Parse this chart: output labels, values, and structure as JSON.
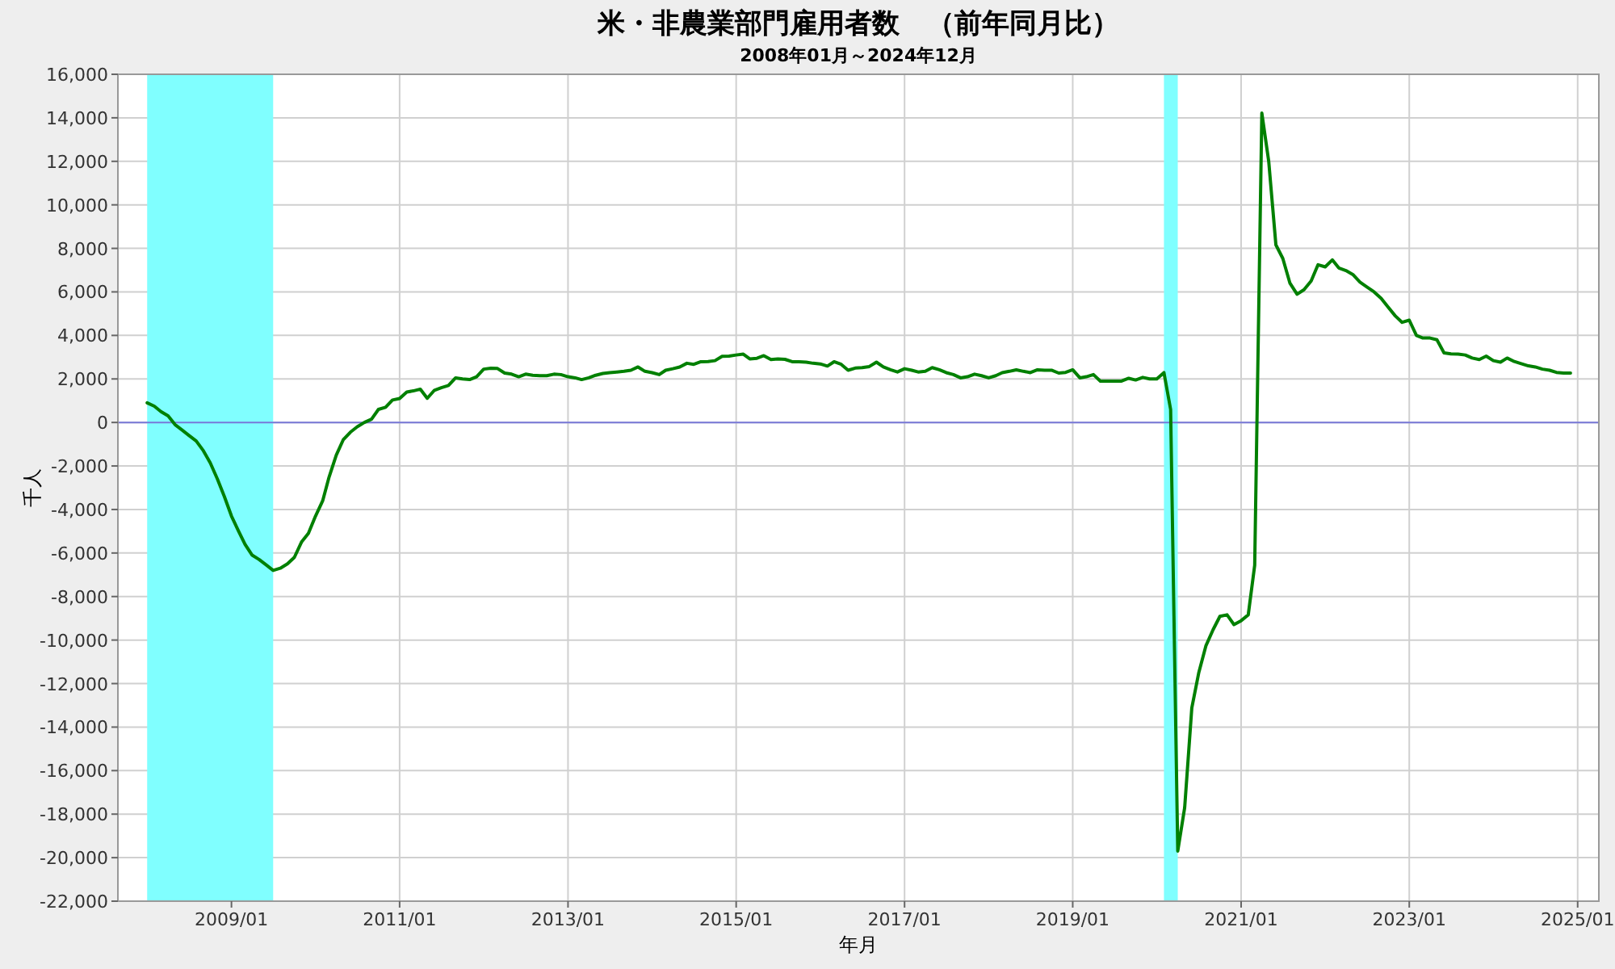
{
  "chart_data": {
    "type": "line",
    "title": "米・非農業部門雇用者数　（前年同月比）",
    "subtitle": "2008年01月～2024年12月",
    "xlabel": "年月",
    "ylabel": "千人",
    "x": [
      "2008-01",
      "2008-02",
      "2008-03",
      "2008-04",
      "2008-05",
      "2008-06",
      "2008-07",
      "2008-08",
      "2008-09",
      "2008-10",
      "2008-11",
      "2008-12",
      "2009-01",
      "2009-02",
      "2009-03",
      "2009-04",
      "2009-05",
      "2009-06",
      "2009-07",
      "2009-08",
      "2009-09",
      "2009-10",
      "2009-11",
      "2009-12",
      "2010-01",
      "2010-02",
      "2010-03",
      "2010-04",
      "2010-05",
      "2010-06",
      "2010-07",
      "2010-08",
      "2010-09",
      "2010-10",
      "2010-11",
      "2010-12",
      "2011-01",
      "2011-02",
      "2011-03",
      "2011-04",
      "2011-05",
      "2011-06",
      "2011-07",
      "2011-08",
      "2011-09",
      "2011-10",
      "2011-11",
      "2011-12",
      "2012-01",
      "2012-02",
      "2012-03",
      "2012-04",
      "2012-05",
      "2012-06",
      "2012-07",
      "2012-08",
      "2012-09",
      "2012-10",
      "2012-11",
      "2012-12",
      "2013-01",
      "2013-02",
      "2013-03",
      "2013-04",
      "2013-05",
      "2013-06",
      "2013-07",
      "2013-08",
      "2013-09",
      "2013-10",
      "2013-11",
      "2013-12",
      "2014-01",
      "2014-02",
      "2014-03",
      "2014-04",
      "2014-05",
      "2014-06",
      "2014-07",
      "2014-08",
      "2014-09",
      "2014-10",
      "2014-11",
      "2014-12",
      "2015-01",
      "2015-02",
      "2015-03",
      "2015-04",
      "2015-05",
      "2015-06",
      "2015-07",
      "2015-08",
      "2015-09",
      "2015-10",
      "2015-11",
      "2015-12",
      "2016-01",
      "2016-02",
      "2016-03",
      "2016-04",
      "2016-05",
      "2016-06",
      "2016-07",
      "2016-08",
      "2016-09",
      "2016-10",
      "2016-11",
      "2016-12",
      "2017-01",
      "2017-02",
      "2017-03",
      "2017-04",
      "2017-05",
      "2017-06",
      "2017-07",
      "2017-08",
      "2017-09",
      "2017-10",
      "2017-11",
      "2017-12",
      "2018-01",
      "2018-02",
      "2018-03",
      "2018-04",
      "2018-05",
      "2018-06",
      "2018-07",
      "2018-08",
      "2018-09",
      "2018-10",
      "2018-11",
      "2018-12",
      "2019-01",
      "2019-02",
      "2019-03",
      "2019-04",
      "2019-05",
      "2019-06",
      "2019-07",
      "2019-08",
      "2019-09",
      "2019-10",
      "2019-11",
      "2019-12",
      "2020-01",
      "2020-02",
      "2020-03",
      "2020-04",
      "2020-05",
      "2020-06",
      "2020-07",
      "2020-08",
      "2020-09",
      "2020-10",
      "2020-11",
      "2020-12",
      "2021-01",
      "2021-02",
      "2021-03",
      "2021-04",
      "2021-05",
      "2021-06",
      "2021-07",
      "2021-08",
      "2021-09",
      "2021-10",
      "2021-11",
      "2021-12",
      "2022-01",
      "2022-02",
      "2022-03",
      "2022-04",
      "2022-05",
      "2022-06",
      "2022-07",
      "2022-08",
      "2022-09",
      "2022-10",
      "2022-11",
      "2022-12",
      "2023-01",
      "2023-02",
      "2023-03",
      "2023-04",
      "2023-05",
      "2023-06",
      "2023-07",
      "2023-08",
      "2023-09",
      "2023-10",
      "2023-11",
      "2023-12",
      "2024-01",
      "2024-02",
      "2024-03",
      "2024-04",
      "2024-05",
      "2024-06",
      "2024-07",
      "2024-08",
      "2024-09",
      "2024-10",
      "2024-11",
      "2024-12"
    ],
    "series": [
      {
        "color": "#008000",
        "values": [
          900,
          750,
          500,
          300,
          -100,
          -350,
          -600,
          -850,
          -1300,
          -1860,
          -2600,
          -3400,
          -4300,
          -5000,
          -5600,
          -6100,
          -6300,
          -6550,
          -6800,
          -6700,
          -6500,
          -6200,
          -5500,
          -5100,
          -4300,
          -3600,
          -2500,
          -1500,
          -800,
          -450,
          -200,
          0,
          150,
          600,
          700,
          1030,
          1100,
          1400,
          1450,
          1530,
          1110,
          1480,
          1600,
          1700,
          2050,
          2000,
          1970,
          2100,
          2450,
          2490,
          2480,
          2270,
          2220,
          2100,
          2220,
          2170,
          2150,
          2150,
          2220,
          2200,
          2100,
          2050,
          1970,
          2050,
          2170,
          2250,
          2290,
          2320,
          2350,
          2400,
          2550,
          2350,
          2290,
          2200,
          2400,
          2470,
          2550,
          2720,
          2670,
          2790,
          2800,
          2840,
          3040,
          3050,
          3100,
          3140,
          2920,
          2950,
          3070,
          2890,
          2920,
          2900,
          2790,
          2790,
          2770,
          2720,
          2690,
          2590,
          2790,
          2670,
          2400,
          2500,
          2520,
          2570,
          2770,
          2550,
          2420,
          2320,
          2470,
          2400,
          2320,
          2350,
          2520,
          2420,
          2290,
          2200,
          2050,
          2100,
          2220,
          2150,
          2050,
          2150,
          2290,
          2350,
          2420,
          2350,
          2290,
          2420,
          2400,
          2400,
          2270,
          2300,
          2420,
          2050,
          2100,
          2200,
          1900,
          1900,
          1900,
          1900,
          2030,
          1950,
          2070,
          2000,
          2000,
          2290,
          600,
          -19700,
          -17700,
          -13120,
          -11510,
          -10270,
          -9530,
          -8910,
          -8840,
          -9290,
          -9110,
          -8840,
          -6560,
          14220,
          11990,
          8160,
          7540,
          6400,
          5890,
          6100,
          6500,
          7250,
          7150,
          7470,
          7100,
          6980,
          6800,
          6450,
          6230,
          6000,
          5700,
          5300,
          4900,
          4600,
          4700,
          4000,
          3880,
          3880,
          3800,
          3200,
          3150,
          3140,
          3100,
          2960,
          2890,
          3050,
          2840,
          2770,
          2960,
          2800,
          2700,
          2600,
          2550,
          2450,
          2400,
          2300,
          2270,
          2270
        ]
      }
    ],
    "xlim": [
      "2007-08-27",
      "2025-04-03"
    ],
    "xticks": [
      {
        "value": "2009-01",
        "label": "2009/01"
      },
      {
        "value": "2011-01",
        "label": "2011/01"
      },
      {
        "value": "2013-01",
        "label": "2013/01"
      },
      {
        "value": "2015-01",
        "label": "2015/01"
      },
      {
        "value": "2017-01",
        "label": "2017/01"
      },
      {
        "value": "2019-01",
        "label": "2019/01"
      },
      {
        "value": "2021-01",
        "label": "2021/01"
      },
      {
        "value": "2023-01",
        "label": "2023/01"
      },
      {
        "value": "2025-01",
        "label": "2025/01"
      }
    ],
    "ylim": [
      -22000,
      16000
    ],
    "yticks": [
      {
        "value": -22000,
        "label": "-22,000"
      },
      {
        "value": -20000,
        "label": "-20,000"
      },
      {
        "value": -18000,
        "label": "-18,000"
      },
      {
        "value": -16000,
        "label": "-16,000"
      },
      {
        "value": -14000,
        "label": "-14,000"
      },
      {
        "value": -12000,
        "label": "-12,000"
      },
      {
        "value": -10000,
        "label": "-10,000"
      },
      {
        "value": -8000,
        "label": "-8,000"
      },
      {
        "value": -6000,
        "label": "-6,000"
      },
      {
        "value": -4000,
        "label": "-4,000"
      },
      {
        "value": -2000,
        "label": "-2,000"
      },
      0,
      {
        "value": 2000,
        "label": "2,000"
      },
      {
        "value": 4000,
        "label": "4,000"
      },
      {
        "value": 6000,
        "label": "6,000"
      },
      {
        "value": 8000,
        "label": "8,000"
      },
      {
        "value": 10000,
        "label": "10,000"
      },
      {
        "value": 12000,
        "label": "12,000"
      },
      {
        "value": 14000,
        "label": "14,000"
      },
      {
        "value": 16000,
        "label": "16,000"
      }
    ],
    "bands": [
      {
        "axis": "x",
        "from": "2008-01",
        "to": "2009-07",
        "color": "#80ffff"
      },
      {
        "axis": "x",
        "from": "2020-02",
        "to": "2020-04",
        "color": "#80ffff"
      }
    ],
    "ref_lines": [
      {
        "axis": "y",
        "value": 0,
        "color": "#7878d8"
      }
    ],
    "grid": true,
    "marker": "none",
    "line_style": "solid"
  }
}
